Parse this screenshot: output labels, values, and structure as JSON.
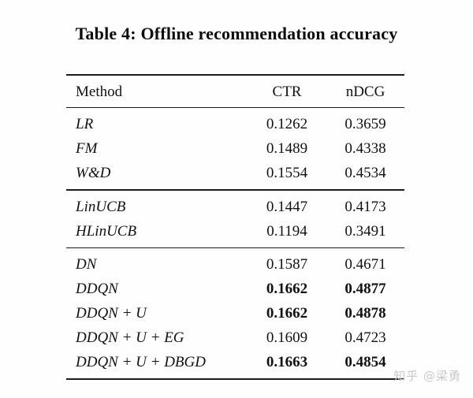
{
  "page": {
    "title": "Table 4: Offline recommendation accuracy"
  },
  "table": {
    "headers": {
      "method": "Method",
      "ctr": "CTR",
      "ndcg": "nDCG"
    },
    "sections": [
      {
        "rows": [
          {
            "method": "LR",
            "ctr": "0.1262",
            "ndcg": "0.3659",
            "bold": false
          },
          {
            "method": "FM",
            "ctr": "0.1489",
            "ndcg": "0.4338",
            "bold": false
          },
          {
            "method": "W&D",
            "ctr": "0.1554",
            "ndcg": "0.4534",
            "bold": false
          }
        ]
      },
      {
        "rows": [
          {
            "method": "LinUCB",
            "ctr": "0.1447",
            "ndcg": "0.4173",
            "bold": false
          },
          {
            "method": "HLinUCB",
            "ctr": "0.1194",
            "ndcg": "0.3491",
            "bold": false
          }
        ]
      },
      {
        "rows": [
          {
            "method": "DN",
            "ctr": "0.1587",
            "ndcg": "0.4671",
            "bold": false
          },
          {
            "method": "DDQN",
            "ctr": "0.1662",
            "ndcg": "0.4877",
            "bold": true
          },
          {
            "method": "DDQN + U",
            "ctr": "0.1662",
            "ndcg": "0.4878",
            "bold": true
          },
          {
            "method": "DDQN + U + EG",
            "ctr": "0.1609",
            "ndcg": "0.4723",
            "bold": false
          },
          {
            "method": "DDQN + U + DBGD",
            "ctr": "0.1663",
            "ndcg": "0.4854",
            "bold": true
          }
        ]
      }
    ]
  },
  "watermark": {
    "text": "知乎 @梁勇"
  },
  "colors": {
    "background": "#fefefe",
    "text": "#111111",
    "rule": "#1a1a1a",
    "watermark": "#c8c8c8"
  },
  "chart_data": {
    "type": "table",
    "title": "Table 4: Offline recommendation accuracy",
    "columns": [
      "Method",
      "CTR",
      "nDCG"
    ],
    "rows": [
      [
        "LR",
        0.1262,
        0.3659
      ],
      [
        "FM",
        0.1489,
        0.4338
      ],
      [
        "W&D",
        0.1554,
        0.4534
      ],
      [
        "LinUCB",
        0.1447,
        0.4173
      ],
      [
        "HLinUCB",
        0.1194,
        0.3491
      ],
      [
        "DN",
        0.1587,
        0.4671
      ],
      [
        "DDQN",
        0.1662,
        0.4877
      ],
      [
        "DDQN + U",
        0.1662,
        0.4878
      ],
      [
        "DDQN + U + EG",
        0.1609,
        0.4723
      ],
      [
        "DDQN + U + DBGD",
        0.1663,
        0.4854
      ]
    ],
    "bold_rows": [
      "DDQN",
      "DDQN + U",
      "DDQN + U + DBGD"
    ]
  }
}
